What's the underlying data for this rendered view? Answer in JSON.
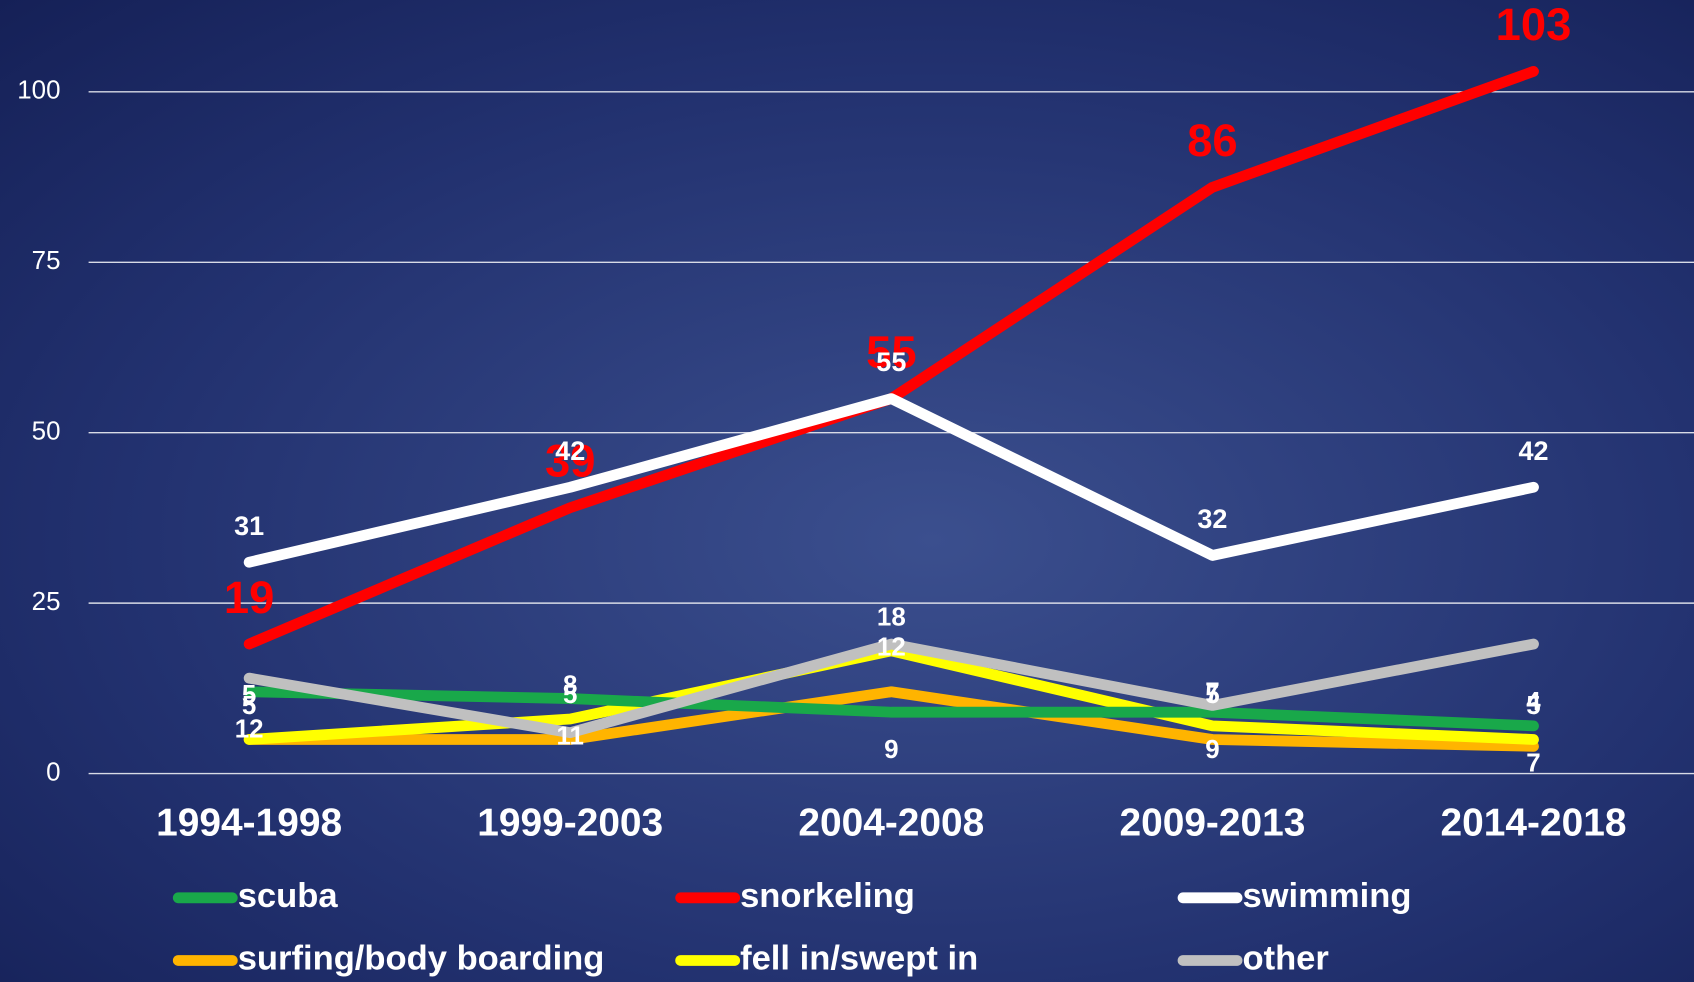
{
  "chart_data": {
    "type": "line",
    "categories": [
      "1994-1998",
      "1999-2003",
      "2004-2008",
      "2009-2013",
      "2014-2018"
    ],
    "series": [
      {
        "name": "scuba",
        "color": "#19a84a",
        "values": [
          12,
          11,
          9,
          9,
          7
        ]
      },
      {
        "name": "snorkeling",
        "color": "#ff0000",
        "values": [
          19,
          39,
          55,
          86,
          103
        ]
      },
      {
        "name": "swimming",
        "color": "#ffffff",
        "values": [
          31,
          42,
          55,
          32,
          42
        ]
      },
      {
        "name": "surfing/body boarding",
        "color": "#ffb400",
        "values": [
          5,
          5,
          12,
          5,
          4
        ]
      },
      {
        "name": "fell in/swept in",
        "color": "#ffff00",
        "values": [
          5,
          8,
          18,
          7,
          5
        ]
      },
      {
        "name": "other",
        "color": "#c0c0c0",
        "values": [
          14,
          6,
          19,
          10,
          19
        ],
        "labels": false
      }
    ],
    "ylim": [
      0,
      103
    ],
    "yticks": [
      0,
      25,
      50,
      75,
      100
    ],
    "grid": true,
    "legend": "bottom"
  }
}
